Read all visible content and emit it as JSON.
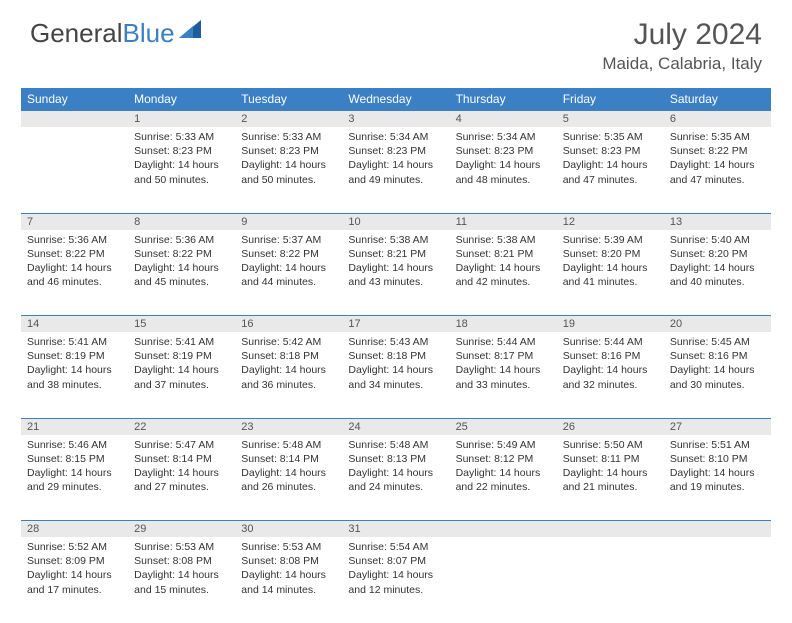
{
  "logo": {
    "text1": "General",
    "text2": "Blue"
  },
  "title": "July 2024",
  "location": "Maida, Calabria, Italy",
  "colors": {
    "header_bg": "#3b7fc4",
    "header_text": "#ffffff",
    "daynum_bg": "#e9e9e9",
    "row_border": "#3b7fc4",
    "body_text": "#333333",
    "title_text": "#555555"
  },
  "weekdays": [
    "Sunday",
    "Monday",
    "Tuesday",
    "Wednesday",
    "Thursday",
    "Friday",
    "Saturday"
  ],
  "weeks": [
    {
      "nums": [
        "",
        "1",
        "2",
        "3",
        "4",
        "5",
        "6"
      ],
      "cells": [
        null,
        {
          "sunrise": "5:33 AM",
          "sunset": "8:23 PM",
          "daylight": "14 hours and 50 minutes."
        },
        {
          "sunrise": "5:33 AM",
          "sunset": "8:23 PM",
          "daylight": "14 hours and 50 minutes."
        },
        {
          "sunrise": "5:34 AM",
          "sunset": "8:23 PM",
          "daylight": "14 hours and 49 minutes."
        },
        {
          "sunrise": "5:34 AM",
          "sunset": "8:23 PM",
          "daylight": "14 hours and 48 minutes."
        },
        {
          "sunrise": "5:35 AM",
          "sunset": "8:23 PM",
          "daylight": "14 hours and 47 minutes."
        },
        {
          "sunrise": "5:35 AM",
          "sunset": "8:22 PM",
          "daylight": "14 hours and 47 minutes."
        }
      ]
    },
    {
      "nums": [
        "7",
        "8",
        "9",
        "10",
        "11",
        "12",
        "13"
      ],
      "cells": [
        {
          "sunrise": "5:36 AM",
          "sunset": "8:22 PM",
          "daylight": "14 hours and 46 minutes."
        },
        {
          "sunrise": "5:36 AM",
          "sunset": "8:22 PM",
          "daylight": "14 hours and 45 minutes."
        },
        {
          "sunrise": "5:37 AM",
          "sunset": "8:22 PM",
          "daylight": "14 hours and 44 minutes."
        },
        {
          "sunrise": "5:38 AM",
          "sunset": "8:21 PM",
          "daylight": "14 hours and 43 minutes."
        },
        {
          "sunrise": "5:38 AM",
          "sunset": "8:21 PM",
          "daylight": "14 hours and 42 minutes."
        },
        {
          "sunrise": "5:39 AM",
          "sunset": "8:20 PM",
          "daylight": "14 hours and 41 minutes."
        },
        {
          "sunrise": "5:40 AM",
          "sunset": "8:20 PM",
          "daylight": "14 hours and 40 minutes."
        }
      ]
    },
    {
      "nums": [
        "14",
        "15",
        "16",
        "17",
        "18",
        "19",
        "20"
      ],
      "cells": [
        {
          "sunrise": "5:41 AM",
          "sunset": "8:19 PM",
          "daylight": "14 hours and 38 minutes."
        },
        {
          "sunrise": "5:41 AM",
          "sunset": "8:19 PM",
          "daylight": "14 hours and 37 minutes."
        },
        {
          "sunrise": "5:42 AM",
          "sunset": "8:18 PM",
          "daylight": "14 hours and 36 minutes."
        },
        {
          "sunrise": "5:43 AM",
          "sunset": "8:18 PM",
          "daylight": "14 hours and 34 minutes."
        },
        {
          "sunrise": "5:44 AM",
          "sunset": "8:17 PM",
          "daylight": "14 hours and 33 minutes."
        },
        {
          "sunrise": "5:44 AM",
          "sunset": "8:16 PM",
          "daylight": "14 hours and 32 minutes."
        },
        {
          "sunrise": "5:45 AM",
          "sunset": "8:16 PM",
          "daylight": "14 hours and 30 minutes."
        }
      ]
    },
    {
      "nums": [
        "21",
        "22",
        "23",
        "24",
        "25",
        "26",
        "27"
      ],
      "cells": [
        {
          "sunrise": "5:46 AM",
          "sunset": "8:15 PM",
          "daylight": "14 hours and 29 minutes."
        },
        {
          "sunrise": "5:47 AM",
          "sunset": "8:14 PM",
          "daylight": "14 hours and 27 minutes."
        },
        {
          "sunrise": "5:48 AM",
          "sunset": "8:14 PM",
          "daylight": "14 hours and 26 minutes."
        },
        {
          "sunrise": "5:48 AM",
          "sunset": "8:13 PM",
          "daylight": "14 hours and 24 minutes."
        },
        {
          "sunrise": "5:49 AM",
          "sunset": "8:12 PM",
          "daylight": "14 hours and 22 minutes."
        },
        {
          "sunrise": "5:50 AM",
          "sunset": "8:11 PM",
          "daylight": "14 hours and 21 minutes."
        },
        {
          "sunrise": "5:51 AM",
          "sunset": "8:10 PM",
          "daylight": "14 hours and 19 minutes."
        }
      ]
    },
    {
      "nums": [
        "28",
        "29",
        "30",
        "31",
        "",
        "",
        ""
      ],
      "cells": [
        {
          "sunrise": "5:52 AM",
          "sunset": "8:09 PM",
          "daylight": "14 hours and 17 minutes."
        },
        {
          "sunrise": "5:53 AM",
          "sunset": "8:08 PM",
          "daylight": "14 hours and 15 minutes."
        },
        {
          "sunrise": "5:53 AM",
          "sunset": "8:08 PM",
          "daylight": "14 hours and 14 minutes."
        },
        {
          "sunrise": "5:54 AM",
          "sunset": "8:07 PM",
          "daylight": "14 hours and 12 minutes."
        },
        null,
        null,
        null
      ]
    }
  ],
  "labels": {
    "sunrise": "Sunrise: ",
    "sunset": "Sunset: ",
    "daylight": "Daylight: "
  }
}
